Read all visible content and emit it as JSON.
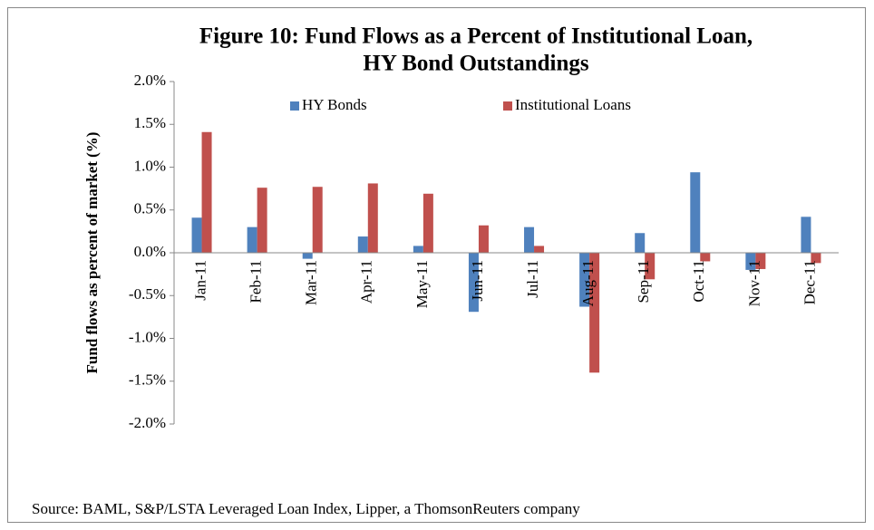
{
  "chart_data": {
    "type": "bar",
    "title": [
      "Figure 10: Fund Flows as a Percent of Institutional Loan,",
      "HY Bond Outstandings"
    ],
    "y_label": "Fund flows as percent of market (%)",
    "source": "Source: BAML, S&P/LSTA Leveraged Loan Index, Lipper, a ThomsonReuters company",
    "categories": [
      "Jan-11",
      "Feb-11",
      "Mar-11",
      "Apr-11",
      "May-11",
      "Jun-11",
      "Jul-11",
      "Aug-11",
      "Sep-11",
      "Oct-11",
      "Nov-11",
      "Dec-11"
    ],
    "series": [
      {
        "name": "HY Bonds",
        "color": "#4f81bd",
        "values": [
          0.41,
          0.3,
          -0.07,
          0.19,
          0.08,
          -0.69,
          0.3,
          -0.63,
          0.23,
          0.94,
          -0.2,
          0.42
        ]
      },
      {
        "name": "Institutional Loans",
        "color": "#c0504d",
        "values": [
          1.41,
          0.76,
          0.77,
          0.81,
          0.69,
          0.32,
          0.08,
          -1.4,
          -0.31,
          -0.1,
          -0.19,
          -0.12
        ]
      }
    ],
    "ylim": [
      -2.0,
      2.0
    ],
    "yticks": [
      {
        "value": -2.0,
        "label": "-2.0%"
      },
      {
        "value": -1.5,
        "label": "-1.5%"
      },
      {
        "value": -1.0,
        "label": "-1.0%"
      },
      {
        "value": -0.5,
        "label": "-0.5%"
      },
      {
        "value": 0.0,
        "label": "0.0%"
      },
      {
        "value": 0.5,
        "label": "0.5%"
      },
      {
        "value": 1.0,
        "label": "1.0%"
      },
      {
        "value": 1.5,
        "label": "1.5%"
      },
      {
        "value": 2.0,
        "label": "2.0%"
      }
    ],
    "legend": "top",
    "grid": false
  }
}
